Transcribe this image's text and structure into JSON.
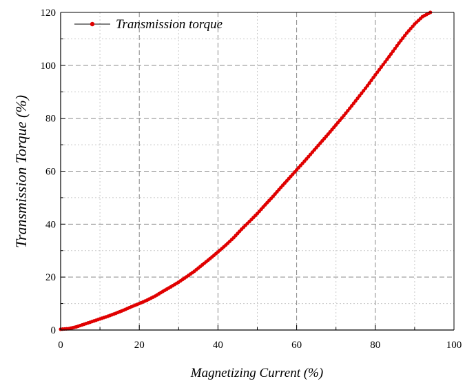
{
  "chart_data": {
    "type": "line",
    "xlabel": "Magnetizing Current (%)",
    "ylabel": "Transmission Torque (%)",
    "xlim": [
      0,
      100
    ],
    "ylim": [
      0,
      120
    ],
    "x_ticks": [
      0,
      20,
      40,
      60,
      80,
      100
    ],
    "y_ticks": [
      0,
      20,
      40,
      60,
      80,
      100,
      120
    ],
    "grid": true,
    "legend_position": "top-left",
    "colors": {
      "series": "#e00000",
      "legend_line": "#000000",
      "axis": "#000000",
      "grid": "#888888"
    },
    "series": [
      {
        "name": "Transmission torque",
        "x": [
          0,
          2,
          4,
          6,
          8,
          10,
          12,
          14,
          16,
          18,
          20,
          22,
          24,
          26,
          28,
          30,
          32,
          34,
          36,
          38,
          40,
          42,
          44,
          46,
          48,
          50,
          52,
          54,
          56,
          58,
          60,
          62,
          64,
          66,
          68,
          70,
          72,
          74,
          76,
          78,
          80,
          82,
          84,
          86,
          88,
          90,
          92,
          94
        ],
        "y": [
          0.3,
          0.5,
          1.2,
          2.2,
          3.2,
          4.2,
          5.2,
          6.3,
          7.5,
          8.8,
          10.0,
          11.3,
          12.8,
          14.6,
          16.3,
          18.1,
          20.1,
          22.2,
          24.6,
          27.0,
          29.5,
          32.1,
          34.9,
          38.1,
          41.0,
          44.0,
          47.3,
          50.5,
          53.9,
          57.2,
          60.5,
          63.8,
          67.2,
          70.6,
          74.0,
          77.5,
          81.0,
          84.7,
          88.5,
          92.3,
          96.4,
          100.3,
          104.3,
          108.4,
          112.2,
          115.6,
          118.4,
          120.0
        ]
      }
    ]
  }
}
